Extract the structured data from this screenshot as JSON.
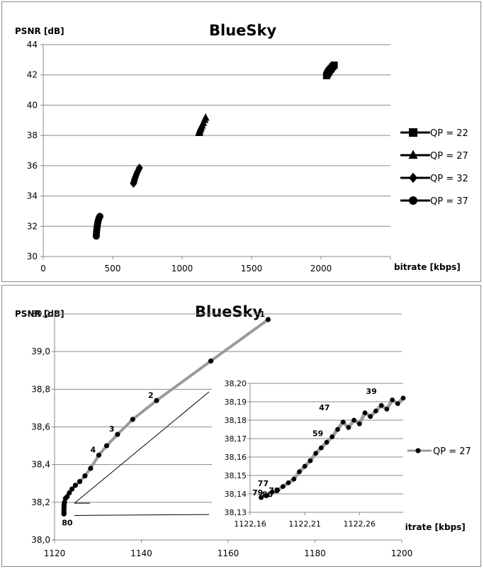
{
  "chart_data": [
    {
      "type": "scatter",
      "title": "BlueSky",
      "ylabel": "PSNR [dB]",
      "xlabel": "bitrate [kbps]",
      "xlim": [
        0,
        2500
      ],
      "ylim": [
        30,
        44
      ],
      "x_ticks": [
        "0",
        "500",
        "1000",
        "1500",
        "2000"
      ],
      "y_ticks": [
        "30",
        "32",
        "34",
        "36",
        "38",
        "40",
        "42",
        "44"
      ],
      "grid": "horizontal",
      "legend_position": "right",
      "series": [
        {
          "name": "QP = 22",
          "marker": "square",
          "x": [
            2040,
            2045,
            2050,
            2055,
            2060,
            2068,
            2075,
            2085,
            2095
          ],
          "y": [
            41.95,
            42.05,
            42.12,
            42.2,
            42.28,
            42.36,
            42.44,
            42.55,
            42.65
          ]
        },
        {
          "name": "QP = 27",
          "marker": "triangle",
          "x": [
            1122,
            1124,
            1127,
            1131,
            1136,
            1143,
            1152,
            1162,
            1169
          ],
          "y": [
            38.16,
            38.22,
            38.32,
            38.42,
            38.52,
            38.65,
            38.82,
            39.02,
            39.17
          ]
        },
        {
          "name": "QP = 32",
          "marker": "diamond",
          "x": [
            650,
            652,
            655,
            659,
            664,
            670,
            677,
            686,
            693
          ],
          "y": [
            34.82,
            34.9,
            35.0,
            35.12,
            35.25,
            35.4,
            35.56,
            35.72,
            35.86
          ]
        },
        {
          "name": "QP = 37",
          "marker": "circle",
          "x": [
            382,
            383,
            384,
            386,
            388,
            390,
            393,
            397,
            402,
            408
          ],
          "y": [
            31.35,
            31.5,
            31.65,
            31.8,
            31.95,
            32.1,
            32.25,
            32.4,
            32.55,
            32.65
          ]
        }
      ]
    },
    {
      "type": "line",
      "title": "BlueSky",
      "ylabel": "PSNR [dB]",
      "xlabel": "bitrate [kbps]",
      "xlim": [
        1120,
        1200
      ],
      "ylim": [
        38.0,
        39.2
      ],
      "x_ticks": [
        "1120",
        "1140",
        "1160",
        "1180",
        "1200"
      ],
      "y_ticks": [
        "38,0",
        "38,2",
        "38,4",
        "38,6",
        "38,8",
        "39,0",
        "39,2"
      ],
      "grid": "horizontal",
      "legend_position": "right",
      "series": [
        {
          "name": "QP = 27",
          "x": [
            1169.2,
            1156,
            1143.5,
            1138,
            1134.5,
            1132,
            1130.2,
            1128.3,
            1127,
            1125.8,
            1124.8,
            1124,
            1123.4,
            1122.9,
            1122.5,
            1122.3,
            1122.2,
            1122.18,
            1122.17,
            1122.17,
            1122.16,
            1122.16,
            1122.16
          ],
          "y": [
            39.17,
            38.95,
            38.74,
            38.64,
            38.56,
            38.5,
            38.45,
            38.38,
            38.34,
            38.31,
            38.29,
            38.27,
            38.25,
            38.23,
            38.22,
            38.2,
            38.19,
            38.18,
            38.17,
            38.16,
            38.15,
            38.145,
            38.138
          ]
        }
      ],
      "point_labels": [
        {
          "text": "1",
          "x": 1169.2,
          "y": 39.17
        },
        {
          "text": "2",
          "x": 1143.5,
          "y": 38.74
        },
        {
          "text": "3",
          "x": 1134.5,
          "y": 38.56
        },
        {
          "text": "4",
          "x": 1130.2,
          "y": 38.45
        },
        {
          "text": "80",
          "x": 1122.16,
          "y": 38.138
        }
      ],
      "inset": {
        "xlim": [
          1122.16,
          1122.3
        ],
        "ylim": [
          38.13,
          38.2
        ],
        "x_ticks": [
          "1122,16",
          "1122,21",
          "1122,26"
        ],
        "y_ticks": [
          "38,13",
          "38,14",
          "38,15",
          "38,16",
          "38,17",
          "38,18",
          "38,19",
          "38,20"
        ],
        "x": [
          1122.3,
          1122.295,
          1122.29,
          1122.285,
          1122.28,
          1122.275,
          1122.27,
          1122.265,
          1122.26,
          1122.255,
          1122.25,
          1122.245,
          1122.24,
          1122.235,
          1122.23,
          1122.225,
          1122.22,
          1122.215,
          1122.21,
          1122.205,
          1122.2,
          1122.195,
          1122.19,
          1122.185,
          1122.18,
          1122.175,
          1122.17
        ],
        "y": [
          38.192,
          38.189,
          38.191,
          38.186,
          38.188,
          38.185,
          38.182,
          38.184,
          38.178,
          38.18,
          38.176,
          38.179,
          38.175,
          38.171,
          38.168,
          38.165,
          38.162,
          38.158,
          38.155,
          38.152,
          38.148,
          38.146,
          38.144,
          38.142,
          38.141,
          38.139,
          38.138
        ],
        "point_labels": [
          {
            "text": "39",
            "x": 1122.275,
            "y": 38.192
          },
          {
            "text": "47",
            "x": 1122.232,
            "y": 38.183
          },
          {
            "text": "59",
            "x": 1122.226,
            "y": 38.169
          },
          {
            "text": "77",
            "x": 1122.176,
            "y": 38.142
          },
          {
            "text": "78",
            "x": 1122.186,
            "y": 38.138
          },
          {
            "text": "79",
            "x": 1122.171,
            "y": 38.137
          },
          {
            "text": "80",
            "x": 1122.18,
            "y": 38.136
          }
        ]
      }
    }
  ]
}
